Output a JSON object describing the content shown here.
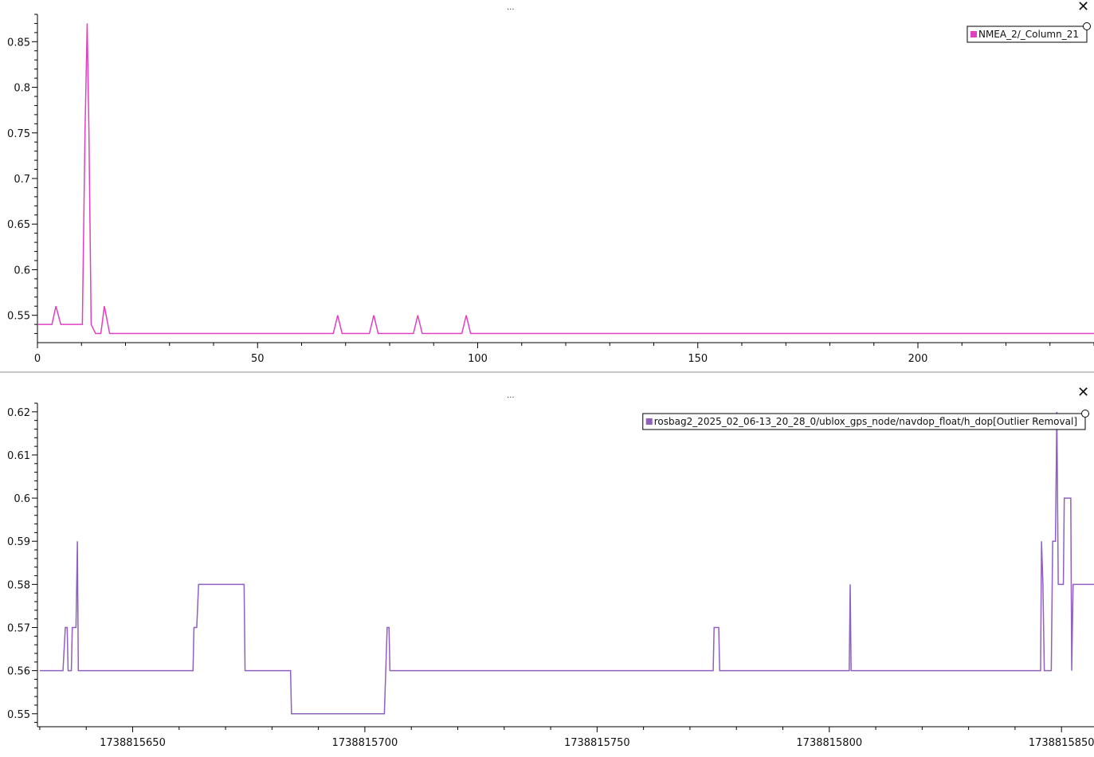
{
  "panels": [
    {
      "menu_label": "...",
      "close_label": "✕",
      "chart_data": {
        "type": "line",
        "series": [
          {
            "name": "NMEA_2/_Column_21",
            "color": "#e040c0",
            "points": [
              [
                0,
                0.54
              ],
              [
                3.3,
                0.54
              ],
              [
                4.2,
                0.56
              ],
              [
                5.3,
                0.54
              ],
              [
                10.2,
                0.54
              ],
              [
                10.8,
                0.75
              ],
              [
                11.3,
                0.87
              ],
              [
                11.7,
                0.75
              ],
              [
                12.2,
                0.54
              ],
              [
                13.2,
                0.53
              ],
              [
                14.4,
                0.53
              ],
              [
                15.2,
                0.56
              ],
              [
                16.4,
                0.53
              ],
              [
                67.2,
                0.53
              ],
              [
                68.2,
                0.55
              ],
              [
                69.2,
                0.53
              ],
              [
                75.4,
                0.53
              ],
              [
                76.4,
                0.55
              ],
              [
                77.4,
                0.53
              ],
              [
                85.4,
                0.53
              ],
              [
                86.4,
                0.55
              ],
              [
                87.4,
                0.53
              ],
              [
                96.4,
                0.53
              ],
              [
                97.4,
                0.55
              ],
              [
                98.4,
                0.53
              ],
              [
                240,
                0.53
              ]
            ]
          }
        ],
        "xlim": [
          0,
          240
        ],
        "ylim": [
          0.52,
          0.88
        ],
        "xticks": [
          0,
          50,
          100,
          150,
          200
        ],
        "xtick_labels": [
          "0",
          "50",
          "100",
          "150",
          "200"
        ],
        "yticks": [
          0.55,
          0.6,
          0.65,
          0.7,
          0.75,
          0.8,
          0.85
        ],
        "ytick_labels": [
          "0.55",
          "0.6",
          "0.65",
          "0.7",
          "0.75",
          "0.8",
          "0.85"
        ],
        "legend_position": "top-right",
        "grid": false
      }
    },
    {
      "menu_label": "...",
      "close_label": "✕",
      "chart_data": {
        "type": "line",
        "series": [
          {
            "name": "rosbag2_2025_02_06-13_20_28_0/ublox_gps_node/navdop_float/h_dop[Outlier Removal]",
            "color": "#9060c0",
            "points": [
              [
                1738815630,
                0.56
              ],
              [
                1738815635,
                0.56
              ],
              [
                1738815635.5,
                0.57
              ],
              [
                1738815635.9,
                0.57
              ],
              [
                1738815636.1,
                0.56
              ],
              [
                1738815636.8,
                0.56
              ],
              [
                1738815637,
                0.57
              ],
              [
                1738815637.8,
                0.57
              ],
              [
                1738815638.1,
                0.59
              ],
              [
                1738815638.3,
                0.56
              ],
              [
                1738815663,
                0.56
              ],
              [
                1738815663.2,
                0.57
              ],
              [
                1738815663.8,
                0.57
              ],
              [
                1738815664.2,
                0.58
              ],
              [
                1738815674,
                0.58
              ],
              [
                1738815674.2,
                0.56
              ],
              [
                1738815684,
                0.56
              ],
              [
                1738815684.2,
                0.55
              ],
              [
                1738815704.2,
                0.55
              ],
              [
                1738815704.5,
                0.56
              ],
              [
                1738815704.8,
                0.57
              ],
              [
                1738815705.2,
                0.57
              ],
              [
                1738815705.4,
                0.56
              ],
              [
                1738815775,
                0.56
              ],
              [
                1738815775.2,
                0.57
              ],
              [
                1738815776.2,
                0.57
              ],
              [
                1738815776.4,
                0.56
              ],
              [
                1738815804.3,
                0.56
              ],
              [
                1738815804.5,
                0.58
              ],
              [
                1738815804.7,
                0.56
              ],
              [
                1738815845.5,
                0.56
              ],
              [
                1738815845.7,
                0.59
              ],
              [
                1738815846,
                0.58
              ],
              [
                1738815846.3,
                0.56
              ],
              [
                1738815847.8,
                0.56
              ],
              [
                1738815848.1,
                0.59
              ],
              [
                1738815848.7,
                0.59
              ],
              [
                1738815849,
                0.62
              ],
              [
                1738815849.3,
                0.58
              ],
              [
                1738815850.4,
                0.58
              ],
              [
                1738815850.6,
                0.6
              ],
              [
                1738815852,
                0.6
              ],
              [
                1738815852.2,
                0.56
              ],
              [
                1738815852.5,
                0.58
              ],
              [
                1738815857,
                0.58
              ]
            ]
          }
        ],
        "xlim": [
          1738815629.5,
          1738815857
        ],
        "ylim": [
          0.547,
          0.622
        ],
        "xticks": [
          1738815650,
          1738815700,
          1738815750,
          1738815800,
          1738815850
        ],
        "xtick_labels": [
          "1738815650",
          "1738815700",
          "1738815750",
          "1738815800",
          "1738815850"
        ],
        "yticks": [
          0.55,
          0.56,
          0.57,
          0.58,
          0.59,
          0.6,
          0.61,
          0.62
        ],
        "ytick_labels": [
          "0.55",
          "0.56",
          "0.57",
          "0.58",
          "0.59",
          "0.6",
          "0.61",
          "0.62"
        ],
        "legend_position": "top-right",
        "grid": false
      }
    }
  ]
}
